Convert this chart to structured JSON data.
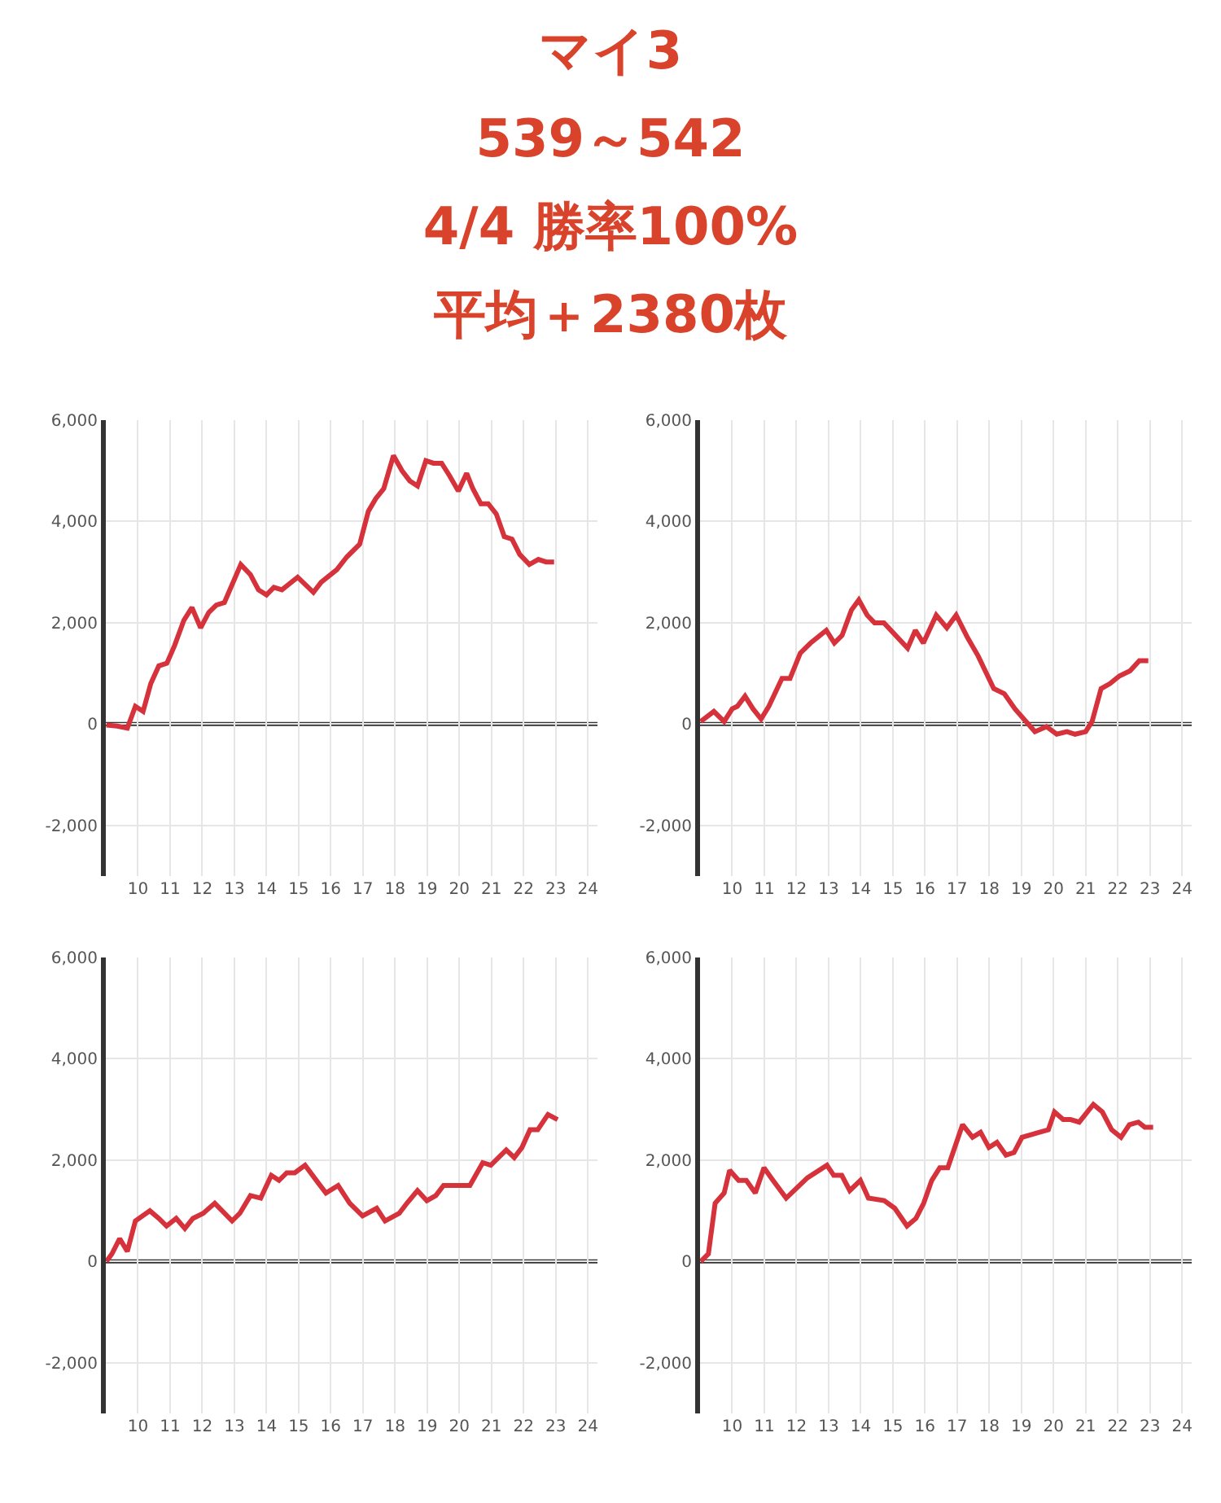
{
  "chart_data": [
    {
      "type": "line",
      "title": "マイ3\n539～542\n4/4 勝率100%\n平均＋2380枚",
      "xlim": [
        9,
        24.3
      ],
      "xticks": [
        10,
        11,
        12,
        13,
        14,
        15,
        16,
        17,
        18,
        19,
        20,
        21,
        22,
        23,
        24
      ],
      "ylim": [
        -3000,
        6000
      ],
      "yticks": [
        {
          "value": -2000,
          "label": "-2,000"
        },
        {
          "value": 0,
          "label": "0"
        },
        {
          "value": 2000,
          "label": "2,000"
        },
        {
          "value": 4000,
          "label": "4,000"
        },
        {
          "value": 6000,
          "label": "6,000"
        }
      ],
      "grid": true,
      "ref_lines": [
        {
          "axis": "y",
          "value": 0,
          "color": "#333333"
        }
      ],
      "series": [
        {
          "color": "#d6323c",
          "x": [
            9.02,
            9.35,
            9.67,
            9.92,
            10.16,
            10.4,
            10.65,
            10.9,
            11.14,
            11.43,
            11.68,
            11.95,
            12.2,
            12.44,
            12.69,
            13.2,
            13.5,
            13.75,
            14.0,
            14.23,
            14.48,
            14.97,
            15.46,
            15.7,
            16.19,
            16.5,
            16.9,
            17.17,
            17.4,
            17.65,
            17.95,
            18.22,
            18.46,
            18.7,
            18.96,
            19.2,
            19.45,
            19.7,
            19.97,
            20.23,
            20.42,
            20.67,
            20.9,
            21.15,
            21.4,
            21.64,
            21.88,
            22.18,
            22.46,
            22.7,
            22.95
          ],
          "values": [
            -20,
            -40,
            -80,
            350,
            250,
            800,
            1150,
            1200,
            1550,
            2050,
            2300,
            1900,
            2200,
            2350,
            2400,
            3150,
            2950,
            2650,
            2550,
            2700,
            2650,
            2900,
            2600,
            2800,
            3050,
            3300,
            3550,
            4200,
            4450,
            4650,
            5300,
            5000,
            4800,
            4700,
            5200,
            5150,
            5150,
            4900,
            4600,
            4950,
            4650,
            4350,
            4350,
            4150,
            3700,
            3650,
            3350,
            3150,
            3250,
            3200,
            3200
          ]
        }
      ]
    },
    {
      "type": "line",
      "xlim": [
        9,
        24.3
      ],
      "xticks": [
        10,
        11,
        12,
        13,
        14,
        15,
        16,
        17,
        18,
        19,
        20,
        21,
        22,
        23,
        24
      ],
      "ylim": [
        -3000,
        6000
      ],
      "yticks": [
        {
          "value": -2000,
          "label": "-2,000"
        },
        {
          "value": 0,
          "label": "0"
        },
        {
          "value": 2000,
          "label": "2,000"
        },
        {
          "value": 4000,
          "label": "4,000"
        },
        {
          "value": 6000,
          "label": "6,000"
        }
      ],
      "grid": true,
      "ref_lines": [
        {
          "axis": "y",
          "value": 0,
          "color": "#333333"
        }
      ],
      "series": [
        {
          "color": "#d6323c",
          "x": [
            9.02,
            9.43,
            9.75,
            10.0,
            10.16,
            10.4,
            10.65,
            10.9,
            11.14,
            11.55,
            11.8,
            12.12,
            12.44,
            12.93,
            13.18,
            13.42,
            13.71,
            13.94,
            14.2,
            14.43,
            14.72,
            15.46,
            15.7,
            15.95,
            16.35,
            16.68,
            16.97,
            17.33,
            17.65,
            18.14,
            18.47,
            18.8,
            19.42,
            19.78,
            20.1,
            20.42,
            20.67,
            21.0,
            21.2,
            21.48,
            21.76,
            22.05,
            22.38,
            22.67,
            22.95
          ],
          "values": [
            50,
            250,
            50,
            300,
            350,
            550,
            300,
            100,
            350,
            900,
            900,
            1400,
            1600,
            1850,
            1600,
            1750,
            2250,
            2450,
            2150,
            2000,
            2000,
            1500,
            1850,
            1600,
            2150,
            1900,
            2150,
            1700,
            1350,
            700,
            600,
            300,
            -150,
            -50,
            -200,
            -150,
            -200,
            -150,
            50,
            700,
            800,
            950,
            1050,
            1250,
            1250
          ]
        }
      ]
    },
    {
      "type": "line",
      "xlim": [
        9,
        24.3
      ],
      "xticks": [
        10,
        11,
        12,
        13,
        14,
        15,
        16,
        17,
        18,
        19,
        20,
        21,
        22,
        23,
        24
      ],
      "ylim": [
        -3000,
        6000
      ],
      "yticks": [
        {
          "value": -2000,
          "label": "-2,000"
        },
        {
          "value": 0,
          "label": "0"
        },
        {
          "value": 2000,
          "label": "2,000"
        },
        {
          "value": 4000,
          "label": "4,000"
        },
        {
          "value": 6000,
          "label": "6,000"
        }
      ],
      "grid": true,
      "ref_lines": [
        {
          "axis": "y",
          "value": 0,
          "color": "#333333"
        }
      ],
      "series": [
        {
          "color": "#d6323c",
          "x": [
            9.02,
            9.19,
            9.43,
            9.67,
            9.92,
            10.37,
            10.65,
            10.89,
            11.19,
            11.46,
            11.71,
            12.03,
            12.39,
            12.93,
            13.17,
            13.5,
            13.82,
            14.15,
            14.39,
            14.63,
            14.88,
            15.2,
            15.61,
            15.85,
            16.23,
            16.59,
            16.99,
            17.43,
            17.69,
            18.13,
            18.37,
            18.7,
            18.99,
            19.27,
            19.51,
            20.33,
            20.73,
            20.98,
            21.46,
            21.71,
            21.95,
            22.2,
            22.44,
            22.76,
            23.06
          ],
          "values": [
            0,
            150,
            450,
            200,
            800,
            1000,
            850,
            700,
            850,
            650,
            850,
            950,
            1150,
            800,
            950,
            1300,
            1250,
            1700,
            1600,
            1750,
            1750,
            1900,
            1550,
            1350,
            1500,
            1150,
            900,
            1050,
            800,
            950,
            1150,
            1400,
            1200,
            1300,
            1500,
            1500,
            1950,
            1900,
            2200,
            2050,
            2250,
            2600,
            2600,
            2900,
            2800
          ]
        }
      ]
    },
    {
      "type": "line",
      "xlim": [
        9,
        24.3
      ],
      "xticks": [
        10,
        11,
        12,
        13,
        14,
        15,
        16,
        17,
        18,
        19,
        20,
        21,
        22,
        23,
        24
      ],
      "ylim": [
        -3000,
        6000
      ],
      "yticks": [
        {
          "value": -2000,
          "label": "-2,000"
        },
        {
          "value": 0,
          "label": "0"
        },
        {
          "value": 2000,
          "label": "2,000"
        },
        {
          "value": 4000,
          "label": "4,000"
        },
        {
          "value": 6000,
          "label": "6,000"
        }
      ],
      "grid": true,
      "ref_lines": [
        {
          "axis": "y",
          "value": 0,
          "color": "#333333"
        }
      ],
      "series": [
        {
          "color": "#d6323c",
          "x": [
            9.02,
            9.26,
            9.47,
            9.75,
            9.92,
            10.2,
            10.44,
            10.72,
            10.99,
            11.27,
            11.68,
            12.01,
            12.34,
            12.95,
            13.16,
            13.41,
            13.66,
            13.99,
            14.24,
            14.73,
            15.06,
            15.44,
            15.72,
            15.96,
            16.21,
            16.46,
            16.71,
            17.17,
            17.48,
            17.73,
            17.99,
            18.24,
            18.52,
            18.77,
            19.02,
            19.84,
            20.03,
            20.3,
            20.53,
            20.8,
            21.24,
            21.52,
            21.81,
            22.1,
            22.36,
            22.64,
            22.84,
            23.1
          ],
          "values": [
            0,
            150,
            1150,
            1350,
            1800,
            1600,
            1600,
            1350,
            1850,
            1600,
            1250,
            1450,
            1650,
            1900,
            1700,
            1700,
            1400,
            1600,
            1250,
            1200,
            1050,
            700,
            850,
            1150,
            1600,
            1850,
            1850,
            2700,
            2450,
            2550,
            2250,
            2350,
            2100,
            2150,
            2450,
            2600,
            2950,
            2800,
            2800,
            2750,
            3100,
            2950,
            2600,
            2450,
            2700,
            2750,
            2650,
            2650
          ]
        }
      ]
    }
  ]
}
